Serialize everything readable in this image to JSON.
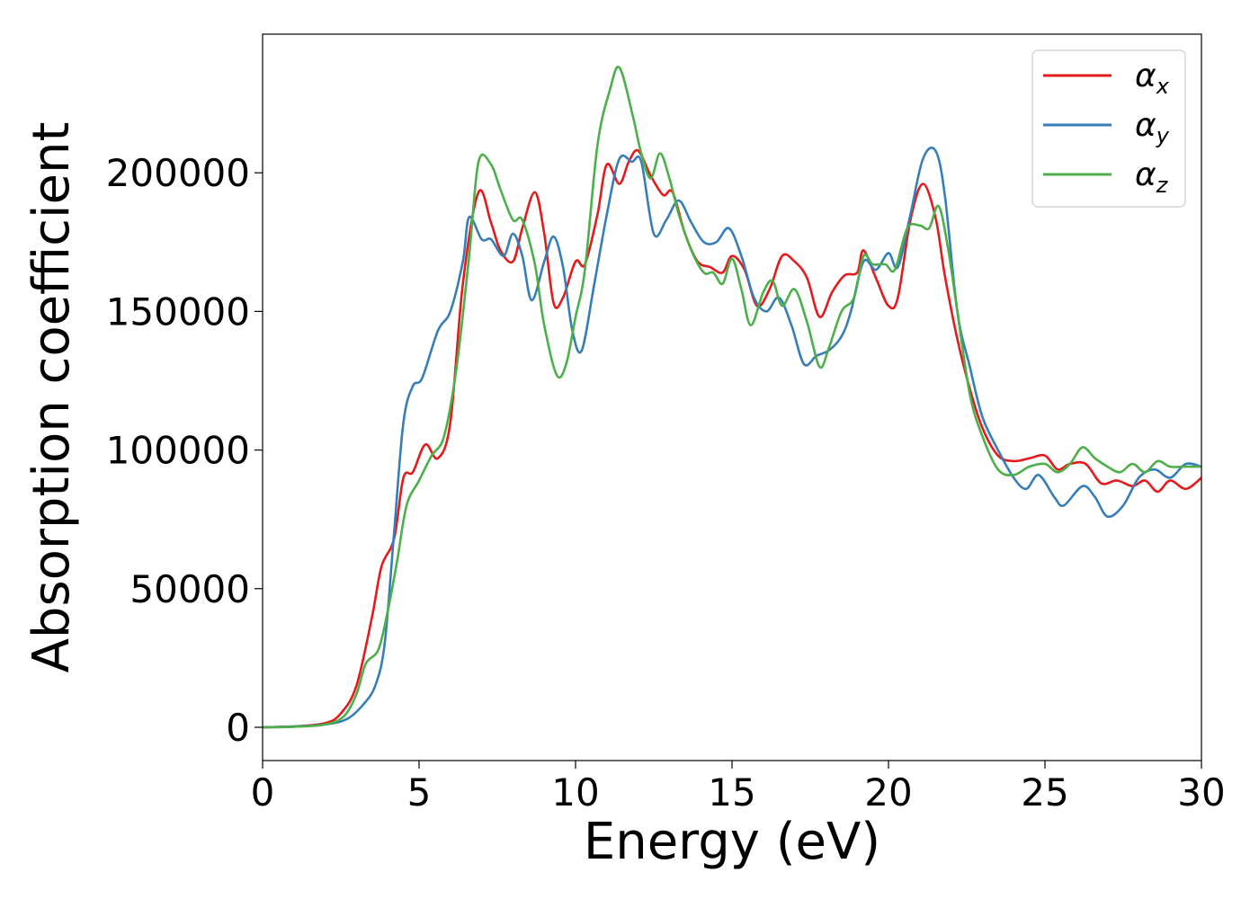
{
  "chart_data": {
    "type": "line",
    "xlabel": "Energy (eV)",
    "ylabel": "Absorption coefficient",
    "xlim": [
      0,
      30
    ],
    "ylim": [
      -12000,
      250000
    ],
    "xticks": [
      0,
      5,
      10,
      15,
      20,
      25,
      30
    ],
    "xtick_labels": [
      "0",
      "5",
      "10",
      "15",
      "20",
      "25",
      "30"
    ],
    "yticks": [
      0,
      50000,
      100000,
      150000,
      200000
    ],
    "ytick_labels": [
      "0",
      "50000",
      "100000",
      "150000",
      "200000"
    ],
    "grid": false,
    "legend_placement": "top-right",
    "series": [
      {
        "name": "α",
        "subscript": "x",
        "color": "#e41a1c",
        "points": [
          [
            0,
            0
          ],
          [
            1,
            300
          ],
          [
            2,
            1500
          ],
          [
            2.5,
            5000
          ],
          [
            3,
            15000
          ],
          [
            3.5,
            40000
          ],
          [
            3.8,
            58000
          ],
          [
            4.2,
            68000
          ],
          [
            4.5,
            90000
          ],
          [
            4.8,
            92000
          ],
          [
            5.2,
            102000
          ],
          [
            5.6,
            97000
          ],
          [
            6,
            110000
          ],
          [
            6.4,
            160000
          ],
          [
            6.9,
            193000
          ],
          [
            7.3,
            182000
          ],
          [
            7.6,
            172000
          ],
          [
            8,
            168000
          ],
          [
            8.3,
            180000
          ],
          [
            8.7,
            193000
          ],
          [
            9,
            178000
          ],
          [
            9.3,
            153000
          ],
          [
            9.6,
            155000
          ],
          [
            10,
            168000
          ],
          [
            10.3,
            167000
          ],
          [
            10.7,
            185000
          ],
          [
            11,
            203000
          ],
          [
            11.4,
            196000
          ],
          [
            11.7,
            204000
          ],
          [
            12,
            208000
          ],
          [
            12.4,
            199000
          ],
          [
            12.8,
            192000
          ],
          [
            13.1,
            193000
          ],
          [
            13.5,
            178000
          ],
          [
            13.9,
            168000
          ],
          [
            14.3,
            166000
          ],
          [
            14.7,
            164000
          ],
          [
            15,
            170000
          ],
          [
            15.4,
            165000
          ],
          [
            15.8,
            152000
          ],
          [
            16.2,
            158000
          ],
          [
            16.6,
            170000
          ],
          [
            17,
            168000
          ],
          [
            17.4,
            162000
          ],
          [
            17.8,
            148000
          ],
          [
            18.2,
            157000
          ],
          [
            18.6,
            163000
          ],
          [
            19,
            164000
          ],
          [
            19.2,
            172000
          ],
          [
            19.6,
            162000
          ],
          [
            20,
            152000
          ],
          [
            20.3,
            155000
          ],
          [
            20.7,
            183000
          ],
          [
            21.1,
            196000
          ],
          [
            21.5,
            184000
          ],
          [
            21.8,
            163000
          ],
          [
            22.2,
            140000
          ],
          [
            22.6,
            122000
          ],
          [
            23,
            108000
          ],
          [
            23.5,
            98000
          ],
          [
            24,
            96000
          ],
          [
            24.5,
            97000
          ],
          [
            25,
            98000
          ],
          [
            25.4,
            93000
          ],
          [
            25.8,
            95000
          ],
          [
            26.3,
            95000
          ],
          [
            26.8,
            88000
          ],
          [
            27.3,
            89000
          ],
          [
            27.8,
            87000
          ],
          [
            28.2,
            89000
          ],
          [
            28.6,
            85000
          ],
          [
            29,
            89000
          ],
          [
            29.5,
            86000
          ],
          [
            30,
            90000
          ]
        ]
      },
      {
        "name": "α",
        "subscript": "y",
        "color": "#377eb8",
        "points": [
          [
            0,
            0
          ],
          [
            1,
            300
          ],
          [
            2,
            1000
          ],
          [
            2.7,
            3000
          ],
          [
            3.2,
            8000
          ],
          [
            3.6,
            15000
          ],
          [
            3.9,
            30000
          ],
          [
            4.2,
            70000
          ],
          [
            4.5,
            110000
          ],
          [
            4.8,
            123000
          ],
          [
            5.1,
            126000
          ],
          [
            5.6,
            143000
          ],
          [
            6,
            150000
          ],
          [
            6.4,
            168000
          ],
          [
            6.6,
            184000
          ],
          [
            7,
            176000
          ],
          [
            7.3,
            176000
          ],
          [
            7.7,
            170000
          ],
          [
            8,
            178000
          ],
          [
            8.3,
            170000
          ],
          [
            8.6,
            154000
          ],
          [
            9,
            168000
          ],
          [
            9.3,
            177000
          ],
          [
            9.6,
            166000
          ],
          [
            9.9,
            143000
          ],
          [
            10.2,
            136000
          ],
          [
            10.6,
            160000
          ],
          [
            11,
            185000
          ],
          [
            11.4,
            205000
          ],
          [
            11.8,
            204000
          ],
          [
            12.1,
            204000
          ],
          [
            12.5,
            178000
          ],
          [
            12.9,
            183000
          ],
          [
            13.3,
            190000
          ],
          [
            13.7,
            182000
          ],
          [
            14.1,
            175000
          ],
          [
            14.5,
            175000
          ],
          [
            14.9,
            180000
          ],
          [
            15.3,
            170000
          ],
          [
            15.7,
            155000
          ],
          [
            16.1,
            150000
          ],
          [
            16.5,
            155000
          ],
          [
            16.9,
            145000
          ],
          [
            17.3,
            131000
          ],
          [
            17.7,
            134000
          ],
          [
            18.1,
            136000
          ],
          [
            18.5,
            141000
          ],
          [
            18.8,
            150000
          ],
          [
            19.2,
            168000
          ],
          [
            19.6,
            165000
          ],
          [
            20,
            171000
          ],
          [
            20.3,
            166000
          ],
          [
            20.7,
            185000
          ],
          [
            21.1,
            205000
          ],
          [
            21.5,
            208000
          ],
          [
            21.8,
            192000
          ],
          [
            22.2,
            150000
          ],
          [
            22.6,
            130000
          ],
          [
            23,
            112000
          ],
          [
            23.5,
            100000
          ],
          [
            24,
            90000
          ],
          [
            24.4,
            86000
          ],
          [
            24.8,
            91000
          ],
          [
            25.3,
            83000
          ],
          [
            25.6,
            80000
          ],
          [
            26.2,
            87000
          ],
          [
            26.6,
            83000
          ],
          [
            27,
            76000
          ],
          [
            27.5,
            80000
          ],
          [
            28,
            90000
          ],
          [
            28.5,
            93000
          ],
          [
            29,
            90000
          ],
          [
            29.5,
            95000
          ],
          [
            30,
            94000
          ]
        ]
      },
      {
        "name": "α",
        "subscript": "z",
        "color": "#4daf4a",
        "points": [
          [
            0,
            0
          ],
          [
            1,
            200
          ],
          [
            2,
            1000
          ],
          [
            2.6,
            4000
          ],
          [
            3,
            12000
          ],
          [
            3.3,
            23000
          ],
          [
            3.7,
            28000
          ],
          [
            4,
            42000
          ],
          [
            4.3,
            60000
          ],
          [
            4.6,
            80000
          ],
          [
            5,
            89000
          ],
          [
            5.4,
            98000
          ],
          [
            5.8,
            105000
          ],
          [
            6.2,
            130000
          ],
          [
            6.6,
            170000
          ],
          [
            6.9,
            204000
          ],
          [
            7.3,
            203000
          ],
          [
            7.6,
            194000
          ],
          [
            8,
            183000
          ],
          [
            8.3,
            183000
          ],
          [
            8.7,
            167000
          ],
          [
            9,
            145000
          ],
          [
            9.4,
            127000
          ],
          [
            9.7,
            131000
          ],
          [
            10,
            148000
          ],
          [
            10.3,
            165000
          ],
          [
            10.7,
            210000
          ],
          [
            11.1,
            230000
          ],
          [
            11.4,
            238000
          ],
          [
            11.8,
            222000
          ],
          [
            12.1,
            207000
          ],
          [
            12.4,
            198000
          ],
          [
            12.7,
            207000
          ],
          [
            13,
            198000
          ],
          [
            13.3,
            185000
          ],
          [
            13.7,
            172000
          ],
          [
            14.1,
            164000
          ],
          [
            14.4,
            164000
          ],
          [
            14.7,
            160000
          ],
          [
            15,
            169000
          ],
          [
            15.3,
            158000
          ],
          [
            15.6,
            145000
          ],
          [
            16,
            157000
          ],
          [
            16.3,
            161000
          ],
          [
            16.6,
            152000
          ],
          [
            17,
            158000
          ],
          [
            17.4,
            146000
          ],
          [
            17.8,
            130000
          ],
          [
            18.1,
            137000
          ],
          [
            18.5,
            150000
          ],
          [
            18.9,
            155000
          ],
          [
            19.2,
            170000
          ],
          [
            19.5,
            167000
          ],
          [
            19.9,
            167000
          ],
          [
            20.2,
            165000
          ],
          [
            20.6,
            180000
          ],
          [
            21,
            181000
          ],
          [
            21.3,
            180000
          ],
          [
            21.6,
            188000
          ],
          [
            21.9,
            173000
          ],
          [
            22.2,
            150000
          ],
          [
            22.6,
            120000
          ],
          [
            23,
            105000
          ],
          [
            23.5,
            93000
          ],
          [
            24,
            91000
          ],
          [
            24.5,
            94000
          ],
          [
            25,
            95000
          ],
          [
            25.4,
            92000
          ],
          [
            25.8,
            95000
          ],
          [
            26.2,
            101000
          ],
          [
            26.6,
            97000
          ],
          [
            27,
            94000
          ],
          [
            27.4,
            92000
          ],
          [
            27.8,
            95000
          ],
          [
            28.2,
            92000
          ],
          [
            28.6,
            96000
          ],
          [
            29,
            94000
          ],
          [
            29.5,
            94000
          ],
          [
            30,
            94000
          ]
        ]
      }
    ]
  }
}
